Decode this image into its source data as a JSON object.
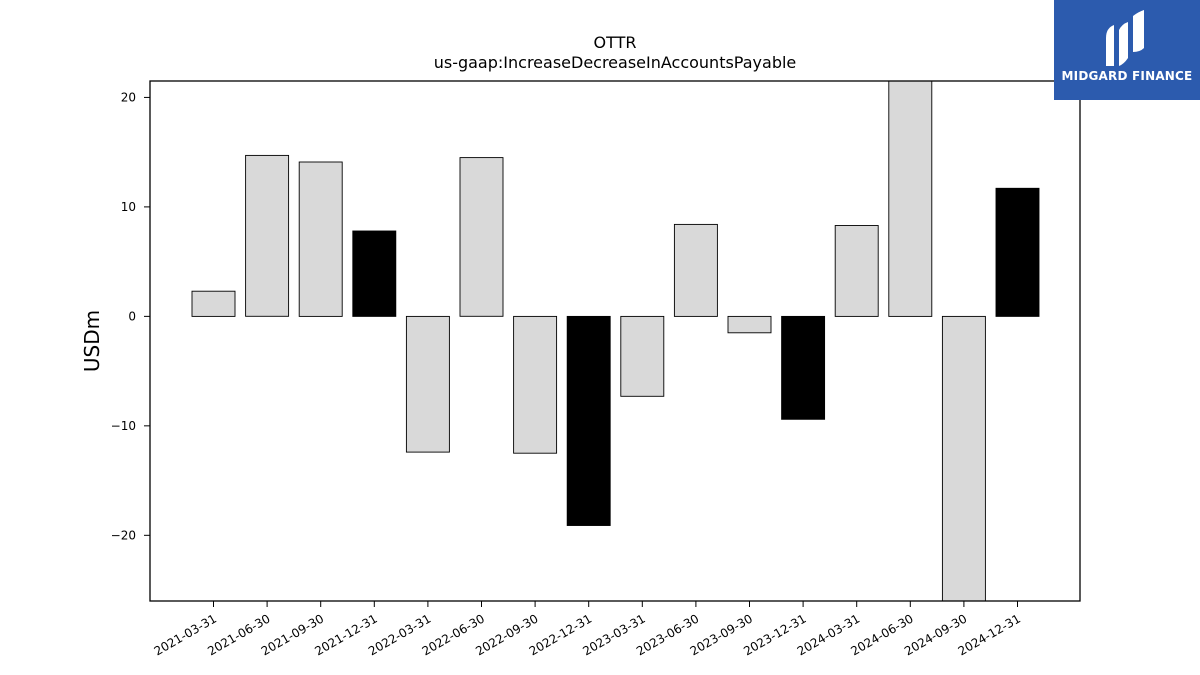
{
  "brand": {
    "name": "MIDGARD FINANCE",
    "bg_color": "#2c5bae"
  },
  "chart_data": {
    "type": "bar",
    "title": "OTTR",
    "subtitle": "us-gaap:IncreaseDecreaseInAccountsPayable",
    "xlabel": "",
    "ylabel": "USDm",
    "ylim": [
      -26,
      21.5
    ],
    "yticks": [
      20,
      10,
      0,
      -10,
      -20
    ],
    "ytick_labels": [
      "20",
      "10",
      "0",
      "−10",
      "−20"
    ],
    "categories": [
      "2021-03-31",
      "2021-06-30",
      "2021-09-30",
      "2021-12-31",
      "2022-03-31",
      "2022-06-30",
      "2022-09-30",
      "2022-12-31",
      "2023-03-31",
      "2023-06-30",
      "2023-09-30",
      "2023-12-31",
      "2024-03-31",
      "2024-06-30",
      "2024-09-30",
      "2024-12-31"
    ],
    "values": [
      2.3,
      14.7,
      14.1,
      7.8,
      -12.4,
      14.5,
      -12.5,
      -19.1,
      -7.3,
      8.4,
      -1.5,
      -9.4,
      8.3,
      21.5,
      -26.0,
      11.7
    ],
    "highlight": [
      false,
      false,
      false,
      true,
      false,
      false,
      false,
      true,
      false,
      false,
      false,
      true,
      false,
      false,
      false,
      true
    ],
    "colors": {
      "normal": "#d9d9d9",
      "highlight": "#000000",
      "edge": "#000000"
    },
    "grid": false
  }
}
